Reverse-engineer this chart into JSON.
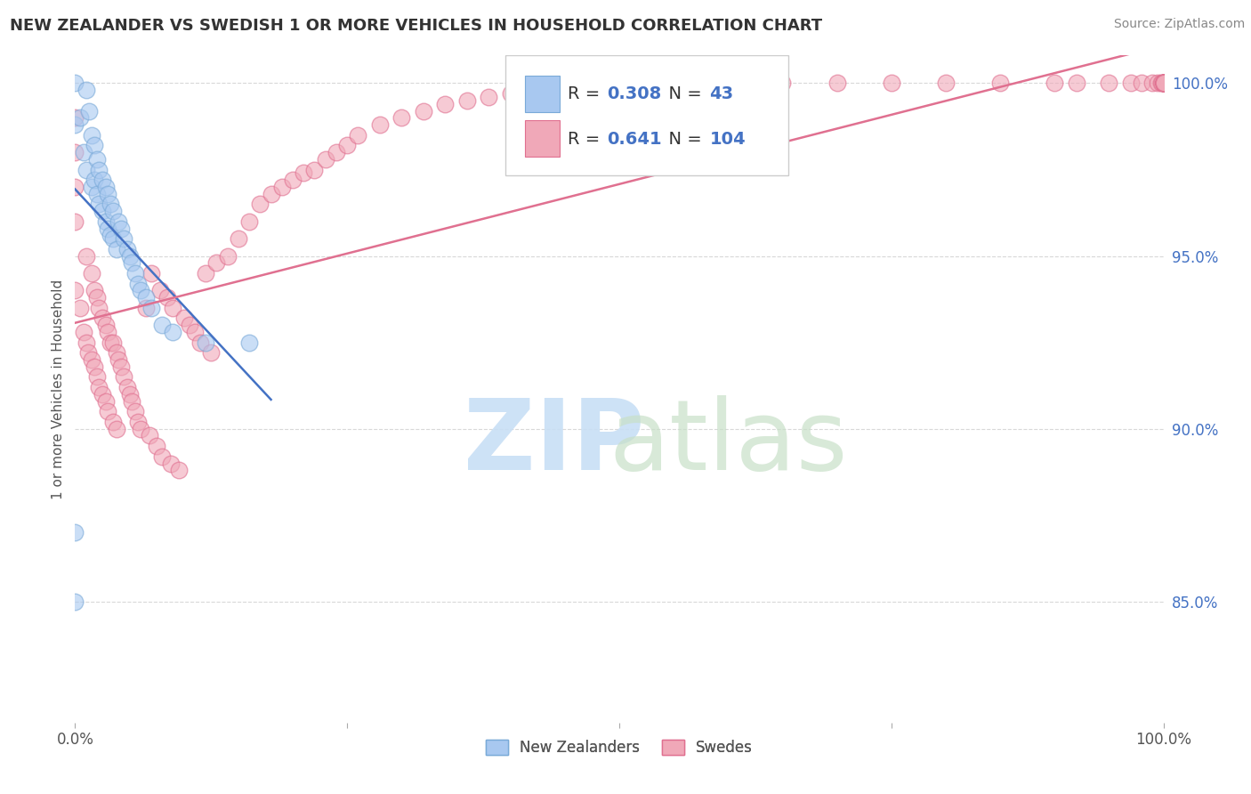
{
  "title": "NEW ZEALANDER VS SWEDISH 1 OR MORE VEHICLES IN HOUSEHOLD CORRELATION CHART",
  "source": "Source: ZipAtlas.com",
  "ylabel": "1 or more Vehicles in Household",
  "ylabel_right_ticks": [
    "100.0%",
    "95.0%",
    "90.0%",
    "85.0%"
  ],
  "ylabel_right_values": [
    1.0,
    0.95,
    0.9,
    0.85
  ],
  "nz_color": "#a8c8f0",
  "sw_color": "#f0a8b8",
  "nz_edge_color": "#7aaad8",
  "sw_edge_color": "#e07090",
  "nz_line_color": "#4472c4",
  "sw_line_color": "#e07090",
  "R_nz": 0.308,
  "N_nz": 43,
  "R_sw": 0.641,
  "N_sw": 104,
  "nz_x": [
    0.0,
    0.0,
    0.0,
    0.0,
    0.005,
    0.008,
    0.01,
    0.01,
    0.013,
    0.015,
    0.015,
    0.018,
    0.018,
    0.02,
    0.02,
    0.022,
    0.022,
    0.025,
    0.025,
    0.028,
    0.028,
    0.03,
    0.03,
    0.032,
    0.032,
    0.035,
    0.035,
    0.038,
    0.04,
    0.042,
    0.045,
    0.048,
    0.05,
    0.052,
    0.055,
    0.058,
    0.06,
    0.065,
    0.07,
    0.08,
    0.09,
    0.12,
    0.16
  ],
  "nz_y": [
    0.87,
    0.85,
    0.988,
    1.0,
    0.99,
    0.98,
    0.998,
    0.975,
    0.992,
    0.97,
    0.985,
    0.972,
    0.982,
    0.968,
    0.978,
    0.965,
    0.975,
    0.963,
    0.972,
    0.96,
    0.97,
    0.958,
    0.968,
    0.956,
    0.965,
    0.955,
    0.963,
    0.952,
    0.96,
    0.958,
    0.955,
    0.952,
    0.95,
    0.948,
    0.945,
    0.942,
    0.94,
    0.938,
    0.935,
    0.93,
    0.928,
    0.925,
    0.925
  ],
  "sw_x": [
    0.0,
    0.0,
    0.0,
    0.0,
    0.0,
    0.005,
    0.008,
    0.01,
    0.01,
    0.012,
    0.015,
    0.015,
    0.018,
    0.018,
    0.02,
    0.02,
    0.022,
    0.022,
    0.025,
    0.025,
    0.028,
    0.028,
    0.03,
    0.03,
    0.032,
    0.035,
    0.035,
    0.038,
    0.038,
    0.04,
    0.042,
    0.045,
    0.048,
    0.05,
    0.052,
    0.055,
    0.058,
    0.06,
    0.065,
    0.068,
    0.07,
    0.075,
    0.078,
    0.08,
    0.085,
    0.088,
    0.09,
    0.095,
    0.1,
    0.105,
    0.11,
    0.115,
    0.12,
    0.125,
    0.13,
    0.14,
    0.15,
    0.16,
    0.17,
    0.18,
    0.19,
    0.2,
    0.21,
    0.22,
    0.23,
    0.24,
    0.25,
    0.26,
    0.28,
    0.3,
    0.32,
    0.34,
    0.36,
    0.38,
    0.4,
    0.45,
    0.5,
    0.55,
    0.62,
    0.65,
    0.7,
    0.75,
    0.8,
    0.85,
    0.9,
    0.92,
    0.95,
    0.97,
    0.98,
    0.99,
    0.995,
    0.998,
    0.999,
    1.0,
    1.0,
    1.0,
    1.0,
    1.0,
    1.0,
    1.0,
    1.0,
    1.0,
    1.0,
    1.0
  ],
  "sw_y": [
    0.94,
    0.96,
    0.97,
    0.98,
    0.99,
    0.935,
    0.928,
    0.925,
    0.95,
    0.922,
    0.92,
    0.945,
    0.918,
    0.94,
    0.915,
    0.938,
    0.912,
    0.935,
    0.91,
    0.932,
    0.908,
    0.93,
    0.905,
    0.928,
    0.925,
    0.902,
    0.925,
    0.9,
    0.922,
    0.92,
    0.918,
    0.915,
    0.912,
    0.91,
    0.908,
    0.905,
    0.902,
    0.9,
    0.935,
    0.898,
    0.945,
    0.895,
    0.94,
    0.892,
    0.938,
    0.89,
    0.935,
    0.888,
    0.932,
    0.93,
    0.928,
    0.925,
    0.945,
    0.922,
    0.948,
    0.95,
    0.955,
    0.96,
    0.965,
    0.968,
    0.97,
    0.972,
    0.974,
    0.975,
    0.978,
    0.98,
    0.982,
    0.985,
    0.988,
    0.99,
    0.992,
    0.994,
    0.995,
    0.996,
    0.997,
    0.998,
    0.999,
    1.0,
    1.0,
    1.0,
    1.0,
    1.0,
    1.0,
    1.0,
    1.0,
    1.0,
    1.0,
    1.0,
    1.0,
    1.0,
    1.0,
    1.0,
    1.0,
    1.0,
    1.0,
    1.0,
    1.0,
    1.0,
    1.0,
    1.0,
    1.0,
    1.0,
    1.0,
    1.0
  ],
  "xlim": [
    0.0,
    1.0
  ],
  "ylim": [
    0.815,
    1.008
  ],
  "background_color": "#ffffff",
  "grid_color": "#d8d8d8",
  "tick_color": "#4472c4"
}
